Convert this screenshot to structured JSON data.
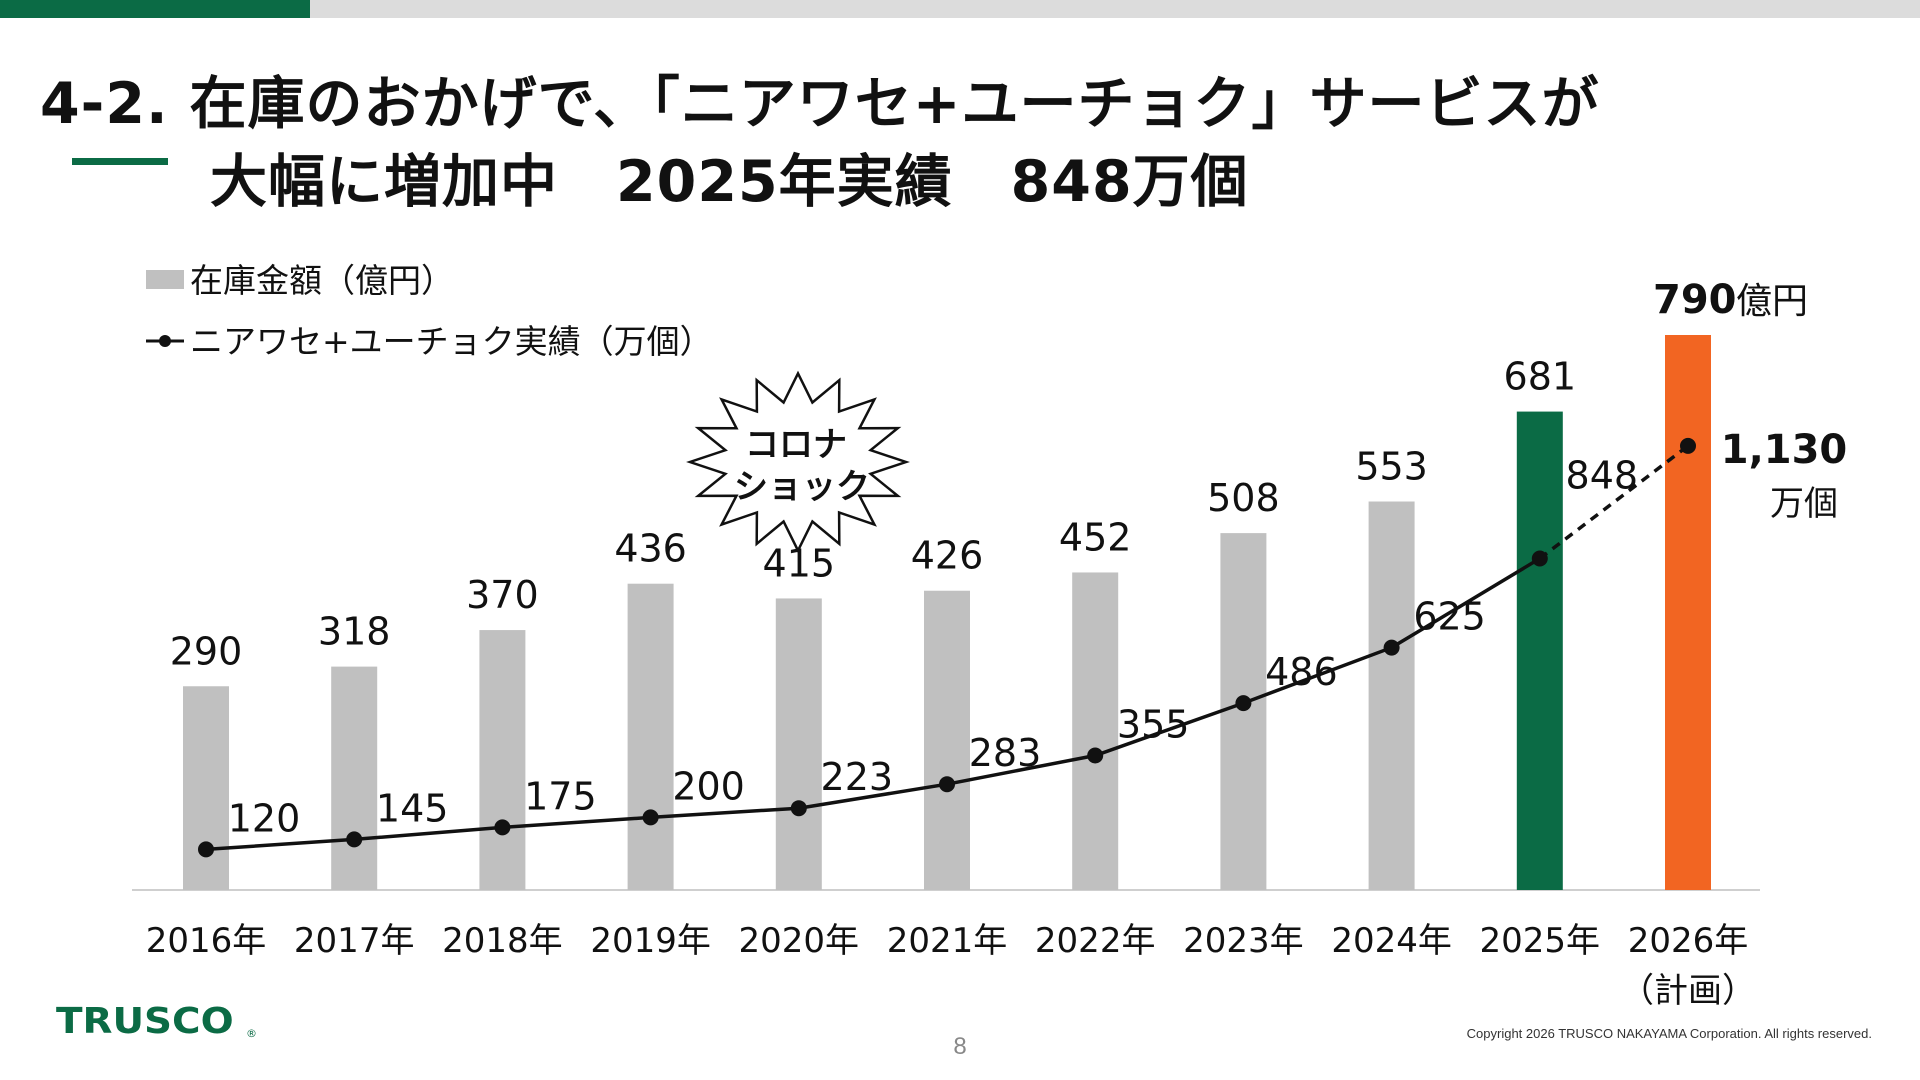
{
  "header": {
    "title_line_1": "4-2. 在庫のおかげで、「ニアワセ+ユーチョク」サービスが",
    "title_line_2": "大幅に増加中　2025年実績　848万個"
  },
  "colors": {
    "brand_green": "#0b6b45",
    "bar_gray": "#c0c0c0",
    "plan_orange": "#f26522",
    "line_black": "#111111"
  },
  "chart_data": {
    "type": "bar",
    "categories": [
      "2016年",
      "2017年",
      "2018年",
      "2019年",
      "2020年",
      "2021年",
      "2022年",
      "2023年",
      "2024年",
      "2025年",
      "2026年"
    ],
    "category_sublabels": [
      "",
      "",
      "",
      "",
      "",
      "",
      "",
      "",
      "",
      "",
      "（計画）"
    ],
    "series": [
      {
        "name": "在庫金額（億円）",
        "type": "bar",
        "values": [
          290,
          318,
          370,
          436,
          415,
          426,
          452,
          508,
          553,
          681,
          790
        ],
        "highlight": {
          "2025年": "#0b6b45",
          "2026年": "#f26522"
        }
      },
      {
        "name": "ニアワセ+ユーチョク実績（万個）",
        "type": "line",
        "values": [
          120,
          145,
          175,
          200,
          223,
          283,
          355,
          486,
          625,
          848,
          1130
        ],
        "projected_from_index": 9
      }
    ],
    "data_labels": {
      "bar": [
        "290",
        "318",
        "370",
        "436",
        "415",
        "426",
        "452",
        "508",
        "553",
        "681",
        "790"
      ],
      "line": [
        "120",
        "145",
        "175",
        "200",
        "223",
        "283",
        "355",
        "486",
        "625",
        "848",
        "1,130"
      ]
    },
    "plan_annotations": {
      "bar_value": "790",
      "bar_unit": "億円",
      "line_value": "1,130",
      "line_unit": "万個"
    },
    "callout": {
      "line_1": "コロナ",
      "line_2": "ショック"
    },
    "legend_position": "top-left",
    "grid": false,
    "title": "",
    "xlabel": "",
    "ylabel": ""
  },
  "footer": {
    "logo_text": "TRUSCO",
    "logo_mark": "®",
    "page_number": "8",
    "copyright": "Copyright 2026 TRUSCO NAKAYAMA Corporation. All rights reserved."
  }
}
